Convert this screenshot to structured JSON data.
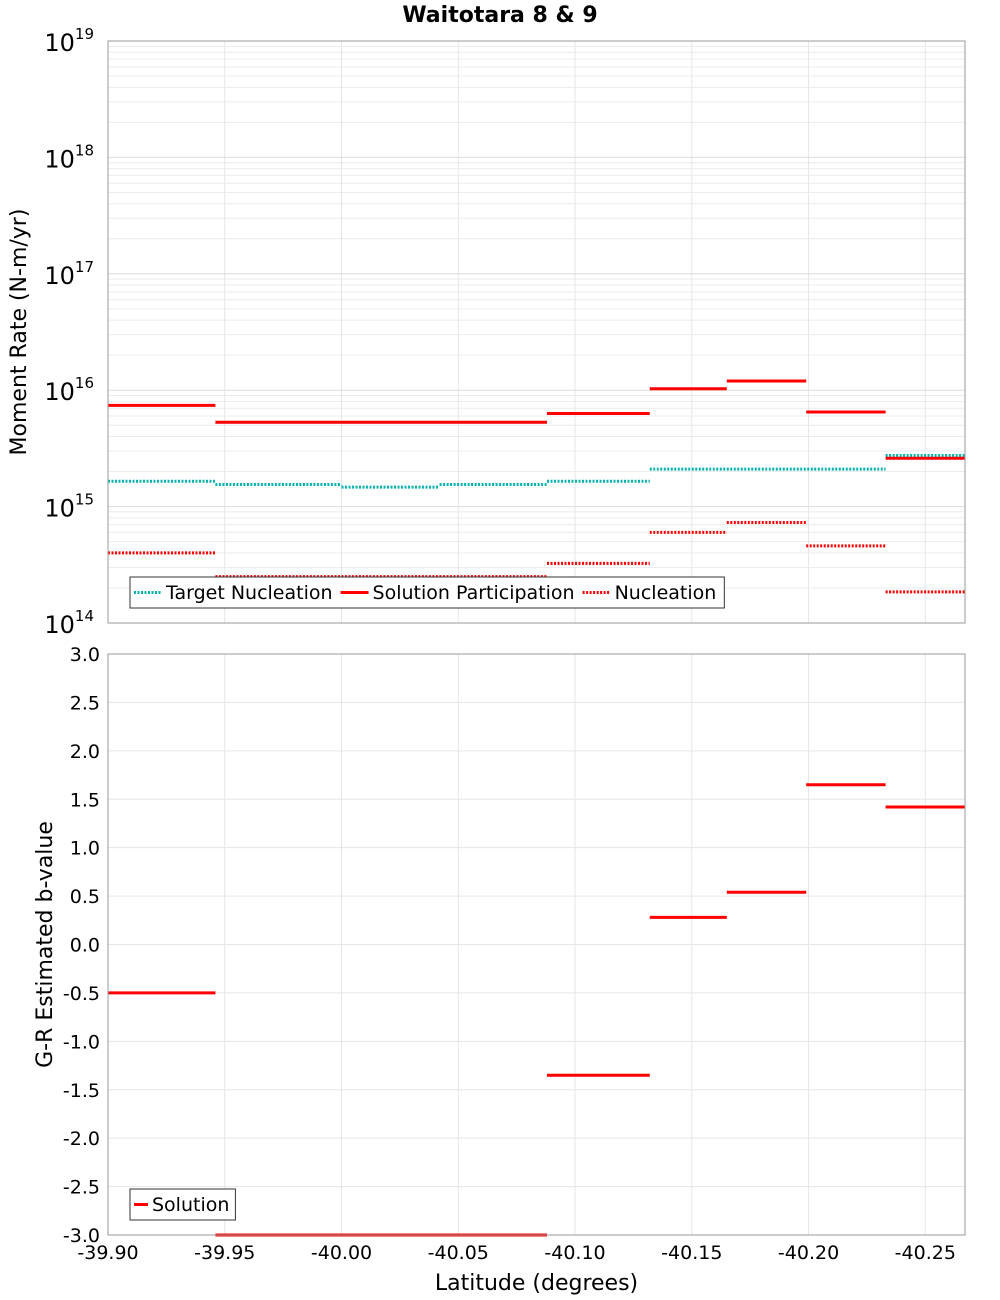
{
  "chart_data": [
    {
      "type": "line",
      "title": "Waitotara 8 & 9",
      "xlabel": "",
      "ylabel": "Moment Rate (N-m/yr)",
      "yscale": "log",
      "xlim": [
        -39.9,
        -40.267
      ],
      "ylim": [
        100000000000000.0,
        1e+19
      ],
      "y_ticks": [
        {
          "base": "10",
          "exp": "14"
        },
        {
          "base": "10",
          "exp": "15"
        },
        {
          "base": "10",
          "exp": "16"
        },
        {
          "base": "10",
          "exp": "17"
        },
        {
          "base": "10",
          "exp": "18"
        },
        {
          "base": "10",
          "exp": "19"
        }
      ],
      "grid": true,
      "legend_position": "bottom-left",
      "series": [
        {
          "name": "Target Nucleation",
          "style": "dotted",
          "color": "#00b3b3",
          "segments": [
            {
              "x0": -39.9,
              "x1": -39.946,
              "y": 1650000000000000.0
            },
            {
              "x0": -39.946,
              "x1": -40.0,
              "y": 1550000000000000.0
            },
            {
              "x0": -40.0,
              "x1": -40.042,
              "y": 1470000000000000.0
            },
            {
              "x0": -40.042,
              "x1": -40.088,
              "y": 1550000000000000.0
            },
            {
              "x0": -40.088,
              "x1": -40.132,
              "y": 1650000000000000.0
            },
            {
              "x0": -40.132,
              "x1": -40.233,
              "y": 2100000000000000.0
            },
            {
              "x0": -40.233,
              "x1": -40.267,
              "y": 2750000000000000.0
            }
          ]
        },
        {
          "name": "Solution Participation",
          "style": "solid",
          "color": "#ff0000",
          "segments": [
            {
              "x0": -39.9,
              "x1": -39.946,
              "y": 7400000000000000.0
            },
            {
              "x0": -39.946,
              "x1": -40.088,
              "y": 5300000000000000.0
            },
            {
              "x0": -40.088,
              "x1": -40.132,
              "y": 6300000000000000.0
            },
            {
              "x0": -40.132,
              "x1": -40.165,
              "y": 1.03e+16
            },
            {
              "x0": -40.165,
              "x1": -40.199,
              "y": 1.2e+16
            },
            {
              "x0": -40.199,
              "x1": -40.233,
              "y": 6500000000000000.0
            },
            {
              "x0": -40.233,
              "x1": -40.267,
              "y": 2600000000000000.0
            }
          ]
        },
        {
          "name": "Nucleation",
          "style": "dotted",
          "color": "#ff0000",
          "segments": [
            {
              "x0": -39.9,
              "x1": -39.946,
              "y": 400000000000000.0
            },
            {
              "x0": -39.946,
              "x1": -40.088,
              "y": 250000000000000.0
            },
            {
              "x0": -40.088,
              "x1": -40.132,
              "y": 325000000000000.0
            },
            {
              "x0": -40.132,
              "x1": -40.165,
              "y": 600000000000000.0
            },
            {
              "x0": -40.165,
              "x1": -40.199,
              "y": 730000000000000.0
            },
            {
              "x0": -40.199,
              "x1": -40.233,
              "y": 460000000000000.0
            },
            {
              "x0": -40.233,
              "x1": -40.267,
              "y": 185000000000000.0
            }
          ]
        }
      ]
    },
    {
      "type": "line",
      "title": "",
      "xlabel": "Latitude (degrees)",
      "ylabel": "G-R Estimated b-value",
      "xlim": [
        -39.9,
        -40.267
      ],
      "ylim": [
        -3.0,
        3.0
      ],
      "x_ticks": [
        -39.9,
        -39.95,
        -40.0,
        -40.05,
        -40.1,
        -40.15,
        -40.2,
        -40.25
      ],
      "x_tick_labels": [
        "-39.90",
        "-39.95",
        "-40.00",
        "-40.05",
        "-40.10",
        "-40.15",
        "-40.20",
        "-40.25"
      ],
      "y_ticks": [
        3.0,
        2.5,
        2.0,
        1.5,
        1.0,
        0.5,
        0.0,
        -0.5,
        -1.0,
        -1.5,
        -2.0,
        -2.5,
        -3.0
      ],
      "y_tick_labels": [
        "3.0",
        "2.5",
        "2.0",
        "1.5",
        "1.0",
        "0.5",
        "0.0",
        "-0.5",
        "-1.0",
        "-1.5",
        "-2.0",
        "-2.5",
        "-3.0"
      ],
      "grid": true,
      "legend_position": "bottom-left",
      "series": [
        {
          "name": "Solution",
          "style": "solid",
          "color": "#ff0000",
          "segments": [
            {
              "x0": -39.9,
              "x1": -39.946,
              "y": -0.5
            },
            {
              "x0": -39.946,
              "x1": -40.088,
              "y": -3.0
            },
            {
              "x0": -40.088,
              "x1": -40.132,
              "y": -1.35
            },
            {
              "x0": -40.132,
              "x1": -40.165,
              "y": 0.28
            },
            {
              "x0": -40.165,
              "x1": -40.199,
              "y": 0.54
            },
            {
              "x0": -40.199,
              "x1": -40.233,
              "y": 1.65
            },
            {
              "x0": -40.233,
              "x1": -40.267,
              "y": 1.42
            }
          ]
        }
      ]
    }
  ]
}
